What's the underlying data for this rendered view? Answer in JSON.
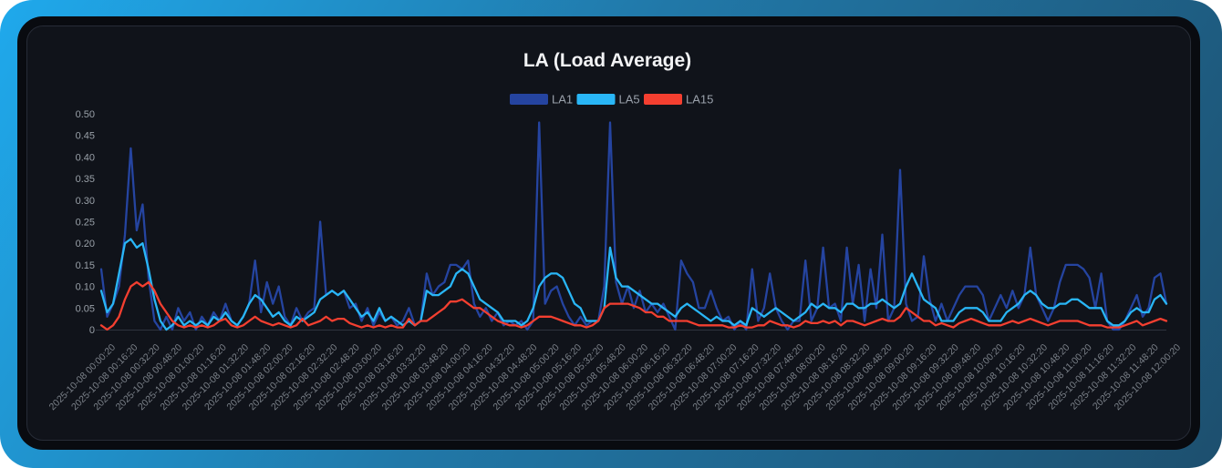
{
  "chart": {
    "title": "LA (Load Average)"
  },
  "theme": {
    "frame_gradient_start": "#1fa9ec",
    "frame_gradient_mid": "#2178a8",
    "frame_gradient_end": "#1d4f6e",
    "card_bg": "#090b10",
    "panel_bg": "#10131a",
    "panel_border": "#272c37",
    "title_color": "#f2f3f5",
    "legend_label": "#9aa1ab",
    "y_label": "#99a0a8",
    "x_label": "#7b8189",
    "axis_line": "#2e333e",
    "la1_color": "#2544a0",
    "la5_color": "#29b6f6",
    "la15_color": "#f43f30"
  },
  "chart_data": {
    "type": "line",
    "title": "LA (Load Average)",
    "grid": false,
    "legend_position": "top-center",
    "ylim": [
      0,
      0.5
    ],
    "y_ticks": [
      "0.50",
      "0.45",
      "0.40",
      "0.35",
      "0.30",
      "0.25",
      "0.20",
      "0.15",
      "0.10",
      "0.05",
      "0"
    ],
    "x_labels": [
      "2025-10-08 00:00:20",
      "2025-10-08 00:16:20",
      "2025-10-08 00:32:20",
      "2025-10-08 00:48:20",
      "2025-10-08 01:00:20",
      "2025-10-08 01:16:20",
      "2025-10-08 01:32:20",
      "2025-10-08 01:48:20",
      "2025-10-08 02:00:20",
      "2025-10-08 02:16:20",
      "2025-10-08 02:32:20",
      "2025-10-08 02:48:20",
      "2025-10-08 03:00:20",
      "2025-10-08 03:16:20",
      "2025-10-08 03:32:20",
      "2025-10-08 03:48:20",
      "2025-10-08 04:00:20",
      "2025-10-08 04:16:20",
      "2025-10-08 04:32:20",
      "2025-10-08 04:48:20",
      "2025-10-08 05:00:20",
      "2025-10-08 05:16:20",
      "2025-10-08 05:32:20",
      "2025-10-08 05:48:20",
      "2025-10-08 06:00:20",
      "2025-10-08 06:16:20",
      "2025-10-08 06:32:20",
      "2025-10-08 06:48:20",
      "2025-10-08 07:00:20",
      "2025-10-08 07:16:20",
      "2025-10-08 07:32:20",
      "2025-10-08 07:48:20",
      "2025-10-08 08:00:20",
      "2025-10-08 08:16:20",
      "2025-10-08 08:32:20",
      "2025-10-08 08:48:20",
      "2025-10-08 09:00:20",
      "2025-10-08 09:16:20",
      "2025-10-08 09:32:20",
      "2025-10-08 09:48:20",
      "2025-10-08 10:00:20",
      "2025-10-08 10:16:20",
      "2025-10-08 10:32:20",
      "2025-10-08 10:48:20",
      "2025-10-08 11:00:20",
      "2025-10-08 11:16:20",
      "2025-10-08 11:32:20",
      "2025-10-08 11:48:20",
      "2025-10-08 12:00:20"
    ],
    "series": [
      {
        "name": "LA1",
        "color": "#2544a0",
        "values": [
          0.14,
          0.03,
          0.06,
          0.1,
          0.22,
          0.42,
          0.23,
          0.29,
          0.12,
          0.02,
          0.0,
          0.03,
          0.0,
          0.05,
          0.02,
          0.04,
          0.0,
          0.03,
          0.01,
          0.04,
          0.02,
          0.06,
          0.02,
          0.01,
          0.03,
          0.06,
          0.16,
          0.04,
          0.11,
          0.06,
          0.1,
          0.03,
          0.01,
          0.05,
          0.02,
          0.04,
          0.05,
          0.25,
          0.08,
          0.09,
          0.08,
          0.09,
          0.05,
          0.06,
          0.02,
          0.05,
          0.01,
          0.04,
          0.02,
          0.03,
          0.01,
          0.02,
          0.05,
          0.01,
          0.02,
          0.13,
          0.08,
          0.1,
          0.11,
          0.15,
          0.15,
          0.14,
          0.16,
          0.06,
          0.03,
          0.05,
          0.02,
          0.04,
          0.01,
          0.02,
          0.01,
          0.02,
          0.0,
          0.02,
          0.48,
          0.06,
          0.09,
          0.1,
          0.06,
          0.03,
          0.01,
          0.03,
          0.01,
          0.02,
          0.02,
          0.1,
          0.48,
          0.11,
          0.06,
          0.1,
          0.05,
          0.09,
          0.04,
          0.06,
          0.04,
          0.06,
          0.03,
          0.0,
          0.16,
          0.13,
          0.11,
          0.05,
          0.05,
          0.09,
          0.05,
          0.02,
          0.03,
          0.0,
          0.02,
          0.0,
          0.14,
          0.02,
          0.05,
          0.13,
          0.05,
          0.02,
          0.0,
          0.02,
          0.02,
          0.16,
          0.02,
          0.05,
          0.19,
          0.05,
          0.06,
          0.02,
          0.19,
          0.06,
          0.15,
          0.02,
          0.14,
          0.05,
          0.22,
          0.02,
          0.05,
          0.37,
          0.06,
          0.02,
          0.03,
          0.17,
          0.07,
          0.02,
          0.06,
          0.02,
          0.05,
          0.08,
          0.1,
          0.1,
          0.1,
          0.08,
          0.02,
          0.05,
          0.08,
          0.05,
          0.09,
          0.05,
          0.08,
          0.19,
          0.08,
          0.05,
          0.02,
          0.05,
          0.11,
          0.15,
          0.15,
          0.15,
          0.14,
          0.12,
          0.05,
          0.13,
          0.02,
          0.0,
          0.0,
          0.02,
          0.05,
          0.08,
          0.03,
          0.05,
          0.12,
          0.13,
          0.06
        ]
      },
      {
        "name": "LA5",
        "color": "#29b6f6",
        "values": [
          0.09,
          0.04,
          0.06,
          0.13,
          0.2,
          0.21,
          0.19,
          0.2,
          0.14,
          0.07,
          0.02,
          0.0,
          0.01,
          0.03,
          0.01,
          0.02,
          0.01,
          0.02,
          0.01,
          0.03,
          0.02,
          0.04,
          0.02,
          0.01,
          0.03,
          0.06,
          0.08,
          0.07,
          0.05,
          0.03,
          0.04,
          0.02,
          0.01,
          0.03,
          0.02,
          0.03,
          0.04,
          0.07,
          0.08,
          0.09,
          0.08,
          0.09,
          0.07,
          0.05,
          0.03,
          0.04,
          0.02,
          0.05,
          0.02,
          0.03,
          0.02,
          0.01,
          0.02,
          0.01,
          0.02,
          0.09,
          0.08,
          0.08,
          0.09,
          0.1,
          0.13,
          0.14,
          0.13,
          0.1,
          0.07,
          0.06,
          0.05,
          0.04,
          0.02,
          0.02,
          0.02,
          0.01,
          0.02,
          0.05,
          0.1,
          0.12,
          0.13,
          0.13,
          0.12,
          0.09,
          0.06,
          0.05,
          0.02,
          0.02,
          0.02,
          0.05,
          0.19,
          0.12,
          0.1,
          0.1,
          0.09,
          0.08,
          0.07,
          0.06,
          0.06,
          0.05,
          0.04,
          0.03,
          0.05,
          0.06,
          0.05,
          0.04,
          0.03,
          0.02,
          0.03,
          0.02,
          0.02,
          0.01,
          0.02,
          0.01,
          0.05,
          0.04,
          0.03,
          0.04,
          0.05,
          0.04,
          0.03,
          0.02,
          0.03,
          0.04,
          0.06,
          0.05,
          0.06,
          0.05,
          0.05,
          0.04,
          0.06,
          0.06,
          0.05,
          0.05,
          0.06,
          0.06,
          0.07,
          0.06,
          0.05,
          0.06,
          0.1,
          0.13,
          0.1,
          0.07,
          0.06,
          0.05,
          0.02,
          0.02,
          0.02,
          0.04,
          0.05,
          0.05,
          0.05,
          0.04,
          0.02,
          0.02,
          0.02,
          0.04,
          0.05,
          0.06,
          0.08,
          0.09,
          0.08,
          0.06,
          0.05,
          0.05,
          0.06,
          0.06,
          0.07,
          0.07,
          0.06,
          0.05,
          0.05,
          0.05,
          0.02,
          0.01,
          0.01,
          0.02,
          0.04,
          0.05,
          0.04,
          0.04,
          0.07,
          0.08,
          0.06
        ]
      },
      {
        "name": "LA15",
        "color": "#f43f30",
        "values": [
          0.01,
          0.0,
          0.01,
          0.03,
          0.07,
          0.1,
          0.11,
          0.1,
          0.11,
          0.09,
          0.06,
          0.04,
          0.02,
          0.01,
          0.005,
          0.01,
          0.005,
          0.01,
          0.005,
          0.01,
          0.02,
          0.025,
          0.01,
          0.005,
          0.01,
          0.02,
          0.03,
          0.02,
          0.015,
          0.01,
          0.015,
          0.01,
          0.005,
          0.01,
          0.025,
          0.01,
          0.015,
          0.02,
          0.03,
          0.02,
          0.025,
          0.025,
          0.015,
          0.01,
          0.005,
          0.01,
          0.005,
          0.01,
          0.005,
          0.01,
          0.005,
          0.005,
          0.025,
          0.01,
          0.02,
          0.02,
          0.03,
          0.04,
          0.05,
          0.065,
          0.065,
          0.07,
          0.06,
          0.05,
          0.05,
          0.04,
          0.03,
          0.02,
          0.015,
          0.01,
          0.01,
          0.005,
          0.01,
          0.02,
          0.03,
          0.03,
          0.03,
          0.025,
          0.02,
          0.015,
          0.01,
          0.01,
          0.005,
          0.01,
          0.02,
          0.05,
          0.06,
          0.06,
          0.06,
          0.06,
          0.055,
          0.05,
          0.04,
          0.04,
          0.03,
          0.03,
          0.02,
          0.02,
          0.02,
          0.02,
          0.015,
          0.01,
          0.01,
          0.01,
          0.01,
          0.01,
          0.005,
          0.005,
          0.01,
          0.005,
          0.005,
          0.01,
          0.01,
          0.02,
          0.015,
          0.01,
          0.01,
          0.005,
          0.01,
          0.02,
          0.015,
          0.015,
          0.02,
          0.015,
          0.02,
          0.01,
          0.02,
          0.02,
          0.015,
          0.01,
          0.015,
          0.02,
          0.025,
          0.02,
          0.02,
          0.03,
          0.05,
          0.04,
          0.03,
          0.02,
          0.02,
          0.01,
          0.015,
          0.01,
          0.005,
          0.015,
          0.02,
          0.025,
          0.02,
          0.015,
          0.01,
          0.01,
          0.01,
          0.015,
          0.02,
          0.015,
          0.02,
          0.025,
          0.02,
          0.015,
          0.01,
          0.015,
          0.02,
          0.02,
          0.02,
          0.02,
          0.015,
          0.01,
          0.01,
          0.01,
          0.005,
          0.005,
          0.005,
          0.01,
          0.015,
          0.02,
          0.01,
          0.015,
          0.02,
          0.025,
          0.02
        ]
      }
    ]
  }
}
